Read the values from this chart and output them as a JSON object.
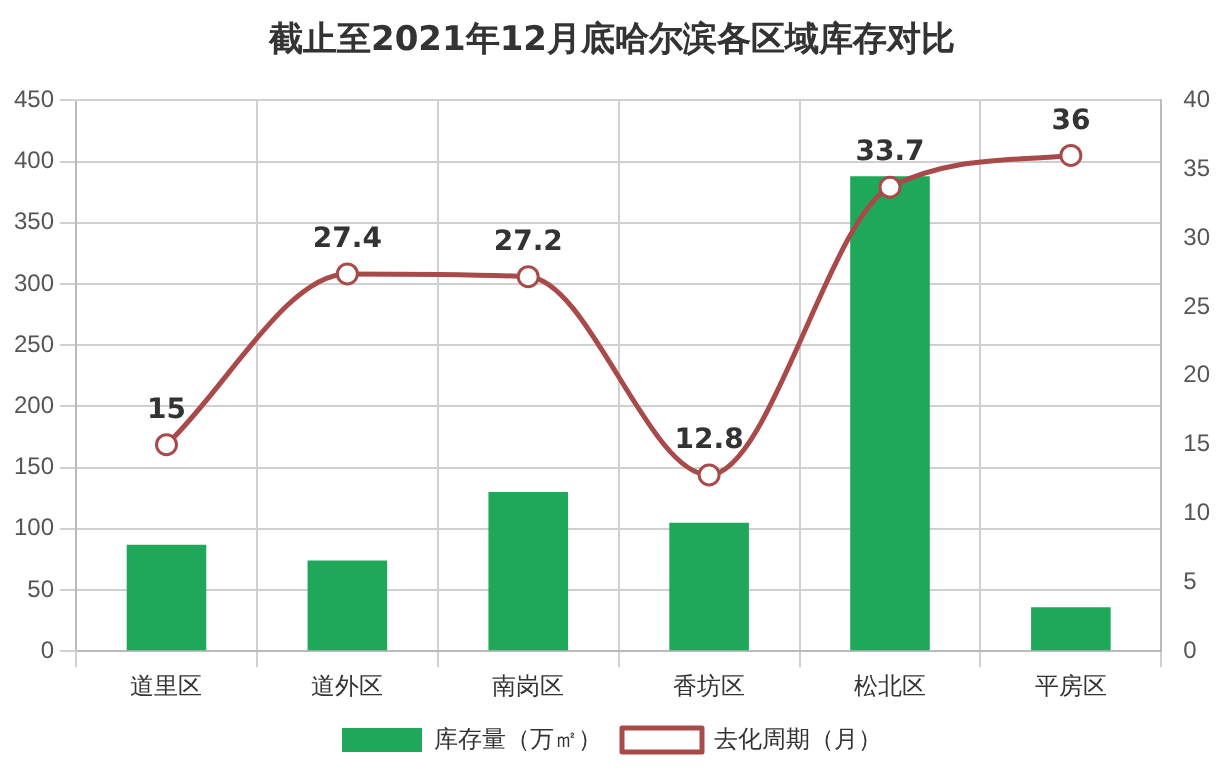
{
  "chart_data": {
    "type": "bar",
    "title": "截止至2021年12月底哈尔滨各区域库存对比",
    "categories": [
      "道里区",
      "道外区",
      "南岗区",
      "香坊区",
      "松北区",
      "平房区"
    ],
    "series": [
      {
        "name": "库存量（万㎡）",
        "color": "#1fa85a",
        "values": [
          87,
          74,
          130,
          105,
          388,
          36
        ]
      },
      {
        "name": "去化周期（月）",
        "type": "line",
        "axis": "y2",
        "color": "#a94a4a",
        "values": [
          15,
          27.4,
          27.2,
          12.8,
          33.7,
          36
        ],
        "value_labels": [
          "15",
          "27.4",
          "27.2",
          "12.8",
          "33.7",
          "36"
        ]
      }
    ],
    "ylim": [
      0,
      450
    ],
    "yticks": [
      0,
      50,
      100,
      150,
      200,
      250,
      300,
      350,
      400,
      450
    ],
    "y2lim": [
      0,
      40
    ],
    "y2ticks": [
      0,
      5,
      10,
      15,
      20,
      25,
      30,
      35,
      40
    ],
    "grid": true,
    "legend": "bottom",
    "marker": "circle"
  }
}
